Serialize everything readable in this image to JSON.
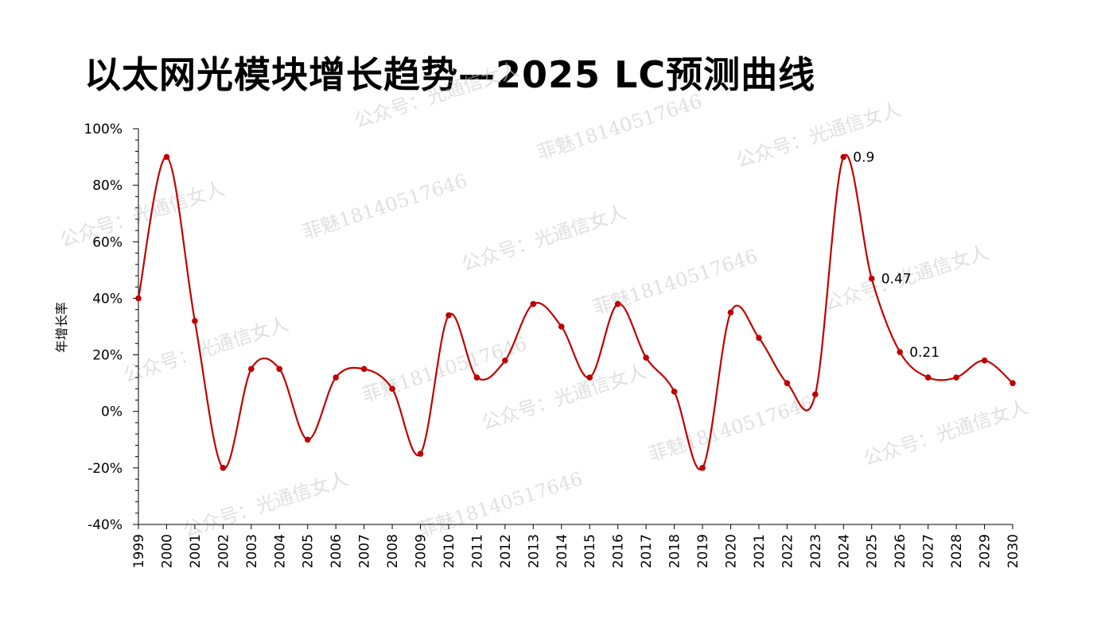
{
  "title": "以太网光模块增长趋势—2025 LC预测曲线",
  "watermarks": [
    "公众号：光通信女人",
    "菲魅18140517646",
    "公众号：光通信女人",
    "菲魅18140517646",
    "公众号：光通信女人",
    "菲魅18140517646",
    "公众号：光通信女人",
    "菲魅18140517646",
    "公众号：光通信女人",
    "公众号：光通信女人",
    "菲魅18140517646",
    "公众号：光通信女人",
    "公众号：光通信女人",
    "菲魅18140517646",
    "公众号：光通信女人"
  ],
  "chart_data": {
    "type": "line",
    "title": "以太网光模块增长趋势—2025 LC预测曲线",
    "xlabel": "",
    "ylabel": "年增长率",
    "ylim": [
      -0.4,
      1.0
    ],
    "yticks": [
      "-40%",
      "-20%",
      "0%",
      "20%",
      "40%",
      "60%",
      "80%",
      "100%"
    ],
    "x": [
      "1999",
      "2000",
      "2001",
      "2002",
      "2003",
      "2004",
      "2005",
      "2006",
      "2007",
      "2008",
      "2009",
      "2010",
      "2011",
      "2012",
      "2013",
      "2014",
      "2015",
      "2016",
      "2017",
      "2018",
      "2019",
      "2020",
      "2021",
      "2022",
      "2023",
      "2024",
      "2025",
      "2026",
      "2027",
      "2028",
      "2029",
      "2030"
    ],
    "series": [
      {
        "values": [
          0.4,
          0.9,
          0.32,
          -0.2,
          0.15,
          0.15,
          -0.1,
          0.12,
          0.15,
          0.08,
          -0.15,
          0.34,
          0.12,
          0.18,
          0.38,
          0.3,
          0.12,
          0.38,
          0.19,
          0.07,
          -0.2,
          0.35,
          0.26,
          0.1,
          0.06,
          0.9,
          0.47,
          0.21,
          0.12,
          0.12,
          0.18,
          0.1
        ],
        "color": "#c00000"
      }
    ],
    "data_labels": [
      {
        "x": "2024",
        "text": "0.9"
      },
      {
        "x": "2025",
        "text": "0.47"
      },
      {
        "x": "2026",
        "text": "0.21"
      }
    ],
    "grid": false,
    "smooth": true
  }
}
